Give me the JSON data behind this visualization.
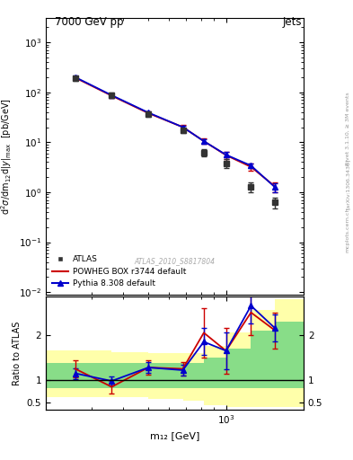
{
  "title_left": "7000 GeV pp",
  "title_right": "Jets",
  "right_label": "Rivet 3.1.10, ≥ 3M events",
  "arxiv_label": "[arXiv:1306.3436]",
  "mcplots_label": "mcplots.cern.ch",
  "watermark": "ATLAS_2010_S8817804",
  "ylabel_main": "d²σ/dm₁₂d|y₁₂|_max  [pb/GeV]",
  "ylabel_ratio": "Ratio to ATLAS",
  "xlabel": "m₁₂ [GeV]",
  "atlas_x": [
    260,
    360,
    500,
    680,
    820,
    1000,
    1250,
    1550
  ],
  "atlas_y": [
    190,
    88,
    36,
    17,
    6.2,
    3.8,
    1.3,
    0.62
  ],
  "atlas_yerr_lo": [
    20,
    10,
    4,
    2,
    1.0,
    0.8,
    0.3,
    0.15
  ],
  "atlas_yerr_hi": [
    20,
    10,
    4,
    2,
    1.0,
    0.8,
    0.3,
    0.15
  ],
  "powheg_x": [
    260,
    360,
    500,
    680,
    820,
    1000,
    1250,
    1550
  ],
  "powheg_y": [
    195,
    85,
    38,
    20,
    10.5,
    5.5,
    3.2,
    1.3
  ],
  "powheg_yerr_lo": [
    15,
    8,
    3,
    2,
    1.2,
    0.8,
    0.5,
    0.3
  ],
  "powheg_yerr_hi": [
    15,
    8,
    3,
    2,
    1.2,
    0.8,
    0.5,
    0.3
  ],
  "pythia_x": [
    260,
    360,
    500,
    680,
    820,
    1000,
    1250,
    1550
  ],
  "pythia_y": [
    200,
    87,
    39,
    20,
    10.5,
    5.6,
    3.4,
    1.25
  ],
  "pythia_yerr_lo": [
    12,
    7,
    2.5,
    1.5,
    1.0,
    0.7,
    0.4,
    0.25
  ],
  "pythia_yerr_hi": [
    12,
    7,
    2.5,
    1.5,
    1.0,
    0.7,
    0.4,
    0.25
  ],
  "ratio_powheg_x": [
    260,
    360,
    500,
    680,
    820,
    1000,
    1250,
    1550
  ],
  "ratio_powheg_y": [
    1.25,
    0.85,
    1.28,
    1.25,
    2.05,
    1.65,
    2.5,
    2.1
  ],
  "ratio_powheg_yerr_lo": [
    0.18,
    0.15,
    0.15,
    0.15,
    0.55,
    0.5,
    0.5,
    0.4
  ],
  "ratio_powheg_yerr_hi": [
    0.18,
    0.15,
    0.15,
    0.15,
    0.55,
    0.5,
    0.5,
    0.4
  ],
  "ratio_pythia_x": [
    260,
    360,
    500,
    680,
    820,
    1000,
    1250,
    1550
  ],
  "ratio_pythia_y": [
    1.15,
    0.98,
    1.28,
    1.22,
    1.85,
    1.65,
    2.65,
    2.15
  ],
  "ratio_pythia_yerr_lo": [
    0.12,
    0.1,
    0.12,
    0.12,
    0.3,
    0.4,
    0.4,
    0.3
  ],
  "ratio_pythia_yerr_hi": [
    0.12,
    0.1,
    0.12,
    0.12,
    0.3,
    0.4,
    0.4,
    0.3
  ],
  "green_band_edges": [
    200,
    360,
    500,
    680,
    820,
    1000,
    1250,
    1550,
    2000
  ],
  "green_band_lo": [
    0.82,
    0.82,
    0.82,
    0.82,
    0.82,
    0.82,
    0.82,
    0.82,
    0.82
  ],
  "green_band_hi": [
    1.38,
    1.38,
    1.38,
    1.38,
    1.5,
    1.7,
    2.1,
    2.3,
    2.4
  ],
  "yellow_band_edges": [
    200,
    360,
    500,
    680,
    820,
    1000,
    1250,
    1550,
    2000
  ],
  "yellow_band_lo": [
    0.62,
    0.62,
    0.58,
    0.55,
    0.45,
    0.4,
    0.4,
    0.4,
    0.4
  ],
  "yellow_band_hi": [
    1.65,
    1.62,
    1.6,
    1.6,
    1.75,
    2.05,
    2.55,
    2.8,
    3.0
  ],
  "atlas_color": "#333333",
  "powheg_color": "#cc0000",
  "pythia_color": "#0000cc",
  "green_color": "#88dd88",
  "yellow_color": "#ffffaa",
  "main_ylim_lo": 0.009,
  "main_ylim_hi": 3000,
  "ratio_ylim_lo": 0.35,
  "ratio_ylim_hi": 2.85,
  "xlim_lo": 200,
  "xlim_hi": 2000,
  "ratio_yticks": [
    0.5,
    1.0,
    2.0
  ],
  "ratio_ytick_labels": [
    "0.5",
    "1",
    "2"
  ]
}
